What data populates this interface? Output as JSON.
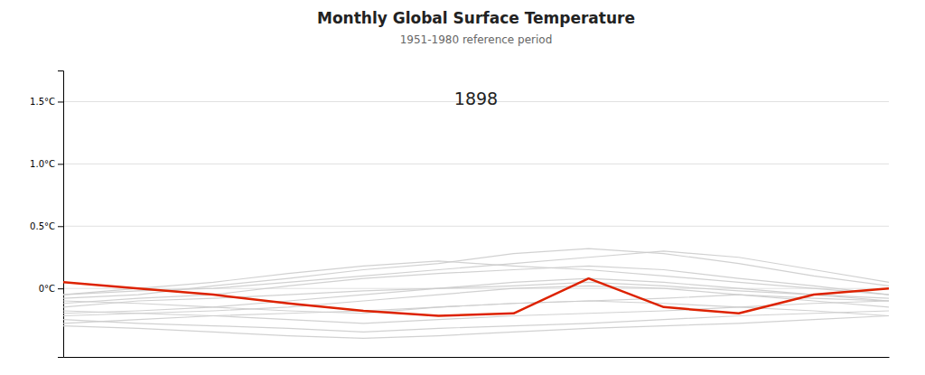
{
  "chart_data": {
    "type": "line",
    "title": "Monthly Global Surface Temperature",
    "subtitle": "1951-1980 reference period",
    "annotations": [
      {
        "text": "1898",
        "x": 5.5,
        "y": 1.58
      }
    ],
    "x": [
      0,
      1,
      2,
      3,
      4,
      5,
      6,
      7,
      8,
      9,
      10,
      11
    ],
    "xlim": [
      0,
      11
    ],
    "ylim": [
      -0.55,
      1.75
    ],
    "yticks": [
      {
        "value": 0.0,
        "label": "0°C"
      },
      {
        "value": 0.5,
        "label": "0.5°C"
      },
      {
        "value": 1.0,
        "label": "1.0°C"
      },
      {
        "value": 1.5,
        "label": "1.5°C"
      }
    ],
    "grid": true,
    "tick_labels": "y",
    "series": [
      {
        "color": "#cccccc",
        "values": [
          -0.1,
          -0.12,
          -0.15,
          -0.18,
          -0.2,
          -0.15,
          -0.12,
          -0.1,
          -0.08,
          -0.05,
          -0.08,
          -0.1
        ]
      },
      {
        "color": "#cccccc",
        "values": [
          -0.18,
          -0.2,
          -0.22,
          -0.25,
          -0.28,
          -0.25,
          -0.22,
          -0.2,
          -0.18,
          -0.15,
          -0.12,
          -0.1
        ]
      },
      {
        "color": "#cccccc",
        "values": [
          -0.25,
          -0.28,
          -0.3,
          -0.32,
          -0.35,
          -0.32,
          -0.3,
          -0.28,
          -0.25,
          -0.22,
          -0.2,
          -0.18
        ]
      },
      {
        "color": "#cccccc",
        "values": [
          -0.3,
          -0.32,
          -0.35,
          -0.38,
          -0.4,
          -0.38,
          -0.35,
          -0.32,
          -0.3,
          -0.28,
          -0.25,
          -0.22
        ]
      },
      {
        "color": "#cccccc",
        "values": [
          -0.05,
          -0.02,
          0.0,
          0.05,
          0.1,
          0.15,
          0.2,
          0.25,
          0.3,
          0.25,
          0.15,
          0.05
        ]
      },
      {
        "color": "#cccccc",
        "values": [
          -0.08,
          -0.05,
          0.02,
          0.08,
          0.15,
          0.2,
          0.28,
          0.32,
          0.28,
          0.2,
          0.1,
          0.02
        ]
      },
      {
        "color": "#cccccc",
        "values": [
          -0.12,
          -0.08,
          -0.05,
          0.02,
          0.08,
          0.12,
          0.15,
          0.18,
          0.15,
          0.08,
          0.02,
          -0.05
        ]
      },
      {
        "color": "#cccccc",
        "values": [
          -0.2,
          -0.18,
          -0.15,
          -0.1,
          -0.05,
          0.0,
          0.05,
          0.08,
          0.05,
          0.0,
          -0.05,
          -0.1
        ]
      },
      {
        "color": "#cccccc",
        "values": [
          -0.22,
          -0.2,
          -0.18,
          -0.15,
          -0.1,
          -0.05,
          0.0,
          0.02,
          0.0,
          -0.05,
          -0.1,
          -0.15
        ]
      },
      {
        "color": "#cccccc",
        "values": [
          -0.28,
          -0.25,
          -0.22,
          -0.2,
          -0.18,
          -0.15,
          -0.12,
          -0.1,
          -0.12,
          -0.15,
          -0.18,
          -0.22
        ]
      },
      {
        "color": "#cccccc",
        "values": [
          -0.15,
          -0.1,
          -0.08,
          -0.05,
          -0.02,
          0.0,
          0.02,
          0.05,
          0.02,
          -0.02,
          -0.05,
          -0.08
        ]
      },
      {
        "color": "#cccccc",
        "values": [
          -0.05,
          0.0,
          0.05,
          0.12,
          0.18,
          0.22,
          0.18,
          0.15,
          0.1,
          0.05,
          0.0,
          -0.05
        ]
      },
      {
        "color": "#dd2200",
        "values": [
          0.05,
          0.0,
          -0.05,
          -0.12,
          -0.18,
          -0.22,
          -0.2,
          0.08,
          -0.15,
          -0.2,
          -0.05,
          0.0
        ]
      }
    ]
  }
}
